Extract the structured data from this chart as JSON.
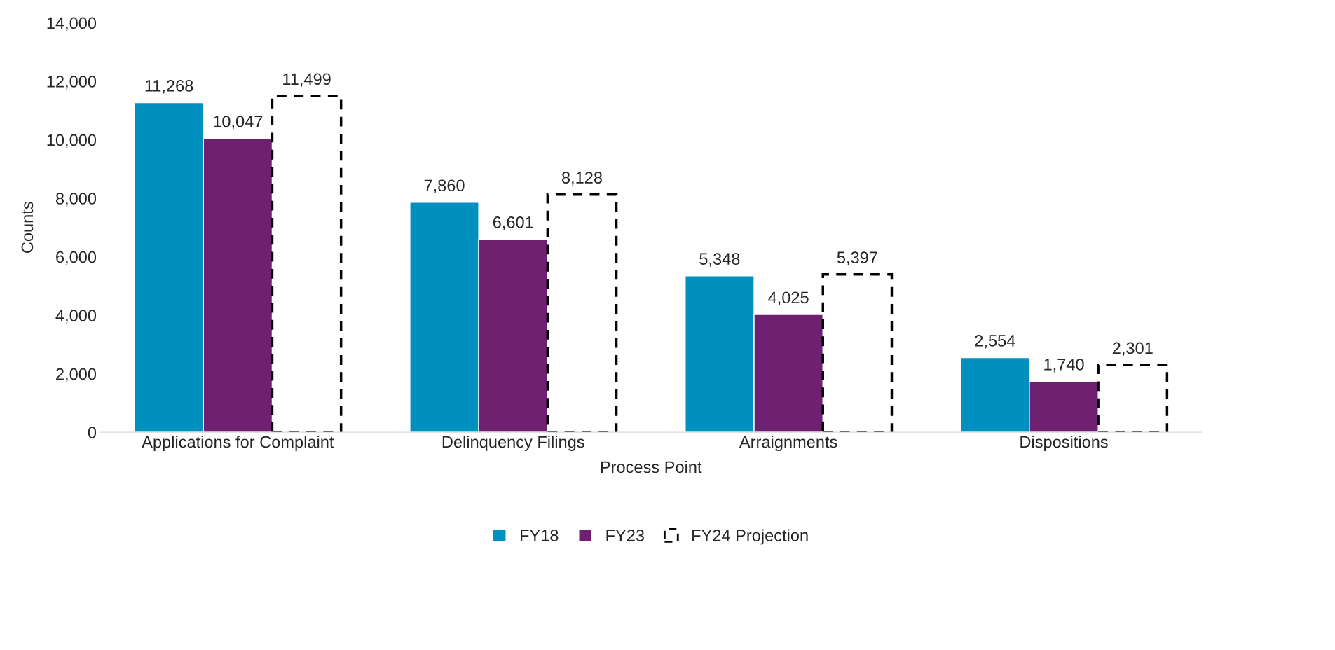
{
  "chart_data": {
    "type": "bar",
    "xlabel": "Process Point",
    "ylabel": "Counts",
    "categories": [
      "Applications for Complaint",
      "Delinquency Filings",
      "Arraignments",
      "Dispositions"
    ],
    "series": [
      {
        "name": "FY18",
        "color": "#0090c0",
        "values": [
          11268,
          7860,
          5348,
          2554
        ],
        "value_labels": [
          "11,268",
          "7,860",
          "5,348",
          "2,554"
        ]
      },
      {
        "name": "FY23",
        "color": "#702070",
        "values": [
          10047,
          6601,
          4025,
          1740
        ],
        "value_labels": [
          "10,047",
          "6,601",
          "4,025",
          "1,740"
        ]
      },
      {
        "name": "FY24 Projection",
        "color": "#000000",
        "line_style": "dashed",
        "values": [
          11499,
          8128,
          5397,
          2301
        ],
        "value_labels": [
          "11,499",
          "8,128",
          "5,397",
          "2,301"
        ]
      }
    ],
    "ylim": [
      0,
      14000
    ],
    "yticks": [
      {
        "value": 0,
        "label": "0"
      },
      {
        "value": 2000,
        "label": "2,000"
      },
      {
        "value": 4000,
        "label": "4,000"
      },
      {
        "value": 6000,
        "label": "6,000"
      },
      {
        "value": 8000,
        "label": "8,000"
      },
      {
        "value": 10000,
        "label": "10,000"
      },
      {
        "value": 12000,
        "label": "12,000"
      },
      {
        "value": 14000,
        "label": "14,000"
      }
    ],
    "grid": false,
    "legend": "bottom"
  }
}
